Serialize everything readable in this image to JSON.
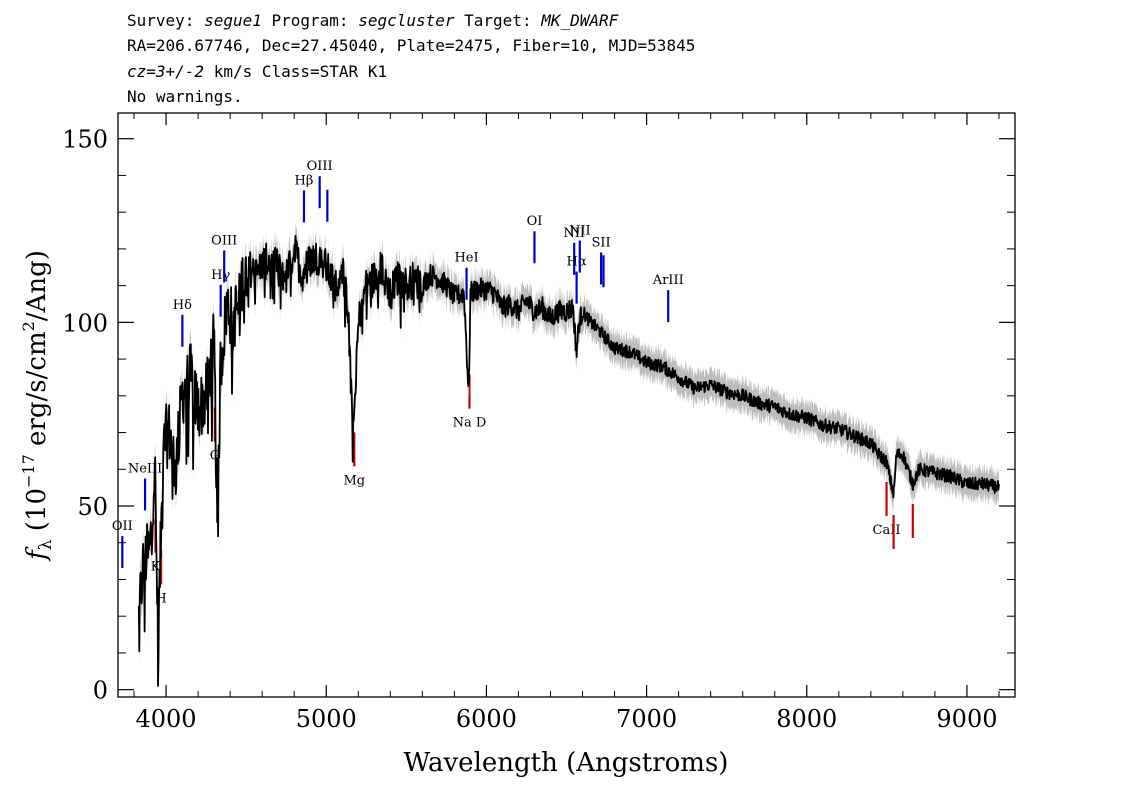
{
  "header": {
    "line1_a": "Survey: ",
    "survey": "segue1",
    "line1_b": " Program: ",
    "program": "segcluster",
    "line1_c": " Target: ",
    "target": "MK_DWARF",
    "line2": "RA=206.67746, Dec=27.45040, Plate=2475, Fiber=10, MJD=53845",
    "cz": "cz=3+/-2",
    "line3_b": " km/s Class=STAR K1",
    "line4": "No warnings."
  },
  "colors": {
    "spectrum": "#000000",
    "error_band": "#bdbdbd",
    "emission_line": "#0000cc",
    "absorption_line": "#cc0000"
  },
  "chart_data": {
    "type": "line",
    "title": "",
    "xlabel": "Wavelength (Angstroms)",
    "ylabel": "f_λ (10^-17 erg/s/cm^2/Ang)",
    "xlim": [
      3700,
      9300
    ],
    "ylim": [
      -2,
      157
    ],
    "xticks": [
      4000,
      5000,
      6000,
      7000,
      8000,
      9000
    ],
    "yticks": [
      0,
      50,
      100,
      150
    ],
    "grid": false,
    "spectrum_anchors": {
      "x": [
        3830,
        3860,
        3900,
        3930,
        3950,
        3970,
        3990,
        4020,
        4060,
        4100,
        4150,
        4200,
        4250,
        4300,
        4320,
        4340,
        4380,
        4420,
        4480,
        4520,
        4560,
        4600,
        4650,
        4700,
        4750,
        4800,
        4850,
        4870,
        4900,
        4960,
        5000,
        5050,
        5100,
        5140,
        5170,
        5190,
        5210,
        5250,
        5300,
        5350,
        5400,
        5450,
        5500,
        5550,
        5600,
        5650,
        5700,
        5750,
        5800,
        5860,
        5890,
        5900,
        5950,
        6000,
        6050,
        6100,
        6150,
        6200,
        6250,
        6300,
        6350,
        6400,
        6450,
        6500,
        6540,
        6563,
        6570,
        6580,
        6600,
        6650,
        6700,
        6800,
        6900,
        7000,
        7100,
        7200,
        7300,
        7400,
        7500,
        7600,
        7700,
        7800,
        7900,
        8000,
        8100,
        8200,
        8300,
        8400,
        8450,
        8498,
        8542,
        8560,
        8600,
        8662,
        8700,
        8800,
        8900,
        9000,
        9100,
        9200
      ],
      "y": [
        20,
        35,
        38,
        62,
        12,
        45,
        68,
        70,
        60,
        80,
        86,
        76,
        80,
        95,
        44,
        88,
        105,
        100,
        112,
        115,
        113,
        116,
        117,
        115,
        112,
        120,
        113,
        115,
        117,
        118,
        115,
        110,
        115,
        103,
        70,
        92,
        103,
        110,
        112,
        115,
        108,
        112,
        110,
        112,
        110,
        113,
        112,
        110,
        107,
        108,
        80,
        108,
        109,
        109,
        108,
        104,
        105,
        103,
        106,
        103,
        104,
        101,
        103,
        103,
        104,
        92,
        96,
        100,
        103,
        100,
        98,
        93,
        92,
        89,
        88,
        85,
        82,
        83,
        81,
        80,
        78,
        77,
        75,
        74,
        72,
        71,
        69,
        67,
        64,
        62,
        53,
        64,
        64,
        56,
        60,
        59,
        58,
        56,
        56,
        55
      ]
    },
    "absorption_lines": [
      {
        "label": "K",
        "x": 3934
      },
      {
        "label": "H",
        "x": 3969
      },
      {
        "label": "G",
        "x": 4305
      },
      {
        "label": "Mg",
        "x": 5175
      },
      {
        "label": "Na D",
        "x": 5894
      },
      {
        "label": "CaII",
        "x": 8498
      },
      {
        "label": "",
        "x": 8542
      },
      {
        "label": "",
        "x": 8662
      }
    ],
    "emission_lines": [
      {
        "label": "OII",
        "x": 3727
      },
      {
        "label": "NeIII",
        "x": 3869
      },
      {
        "label": "Hδ",
        "x": 4102
      },
      {
        "label": "Hγ",
        "x": 4341
      },
      {
        "label": "OIII",
        "x": 4363
      },
      {
        "label": "Hβ",
        "x": 4861
      },
      {
        "label": "OIII",
        "x": 4959
      },
      {
        "label": "",
        "x": 5007
      },
      {
        "label": "HeI",
        "x": 5876
      },
      {
        "label": "OI",
        "x": 6300
      },
      {
        "label": "NII",
        "x": 6548
      },
      {
        "label": "Hα",
        "x": 6563
      },
      {
        "label": "NII",
        "x": 6583
      },
      {
        "label": "SII",
        "x": 6716
      },
      {
        "label": "",
        "x": 6731
      },
      {
        "label": "ArIII",
        "x": 7135
      }
    ]
  }
}
